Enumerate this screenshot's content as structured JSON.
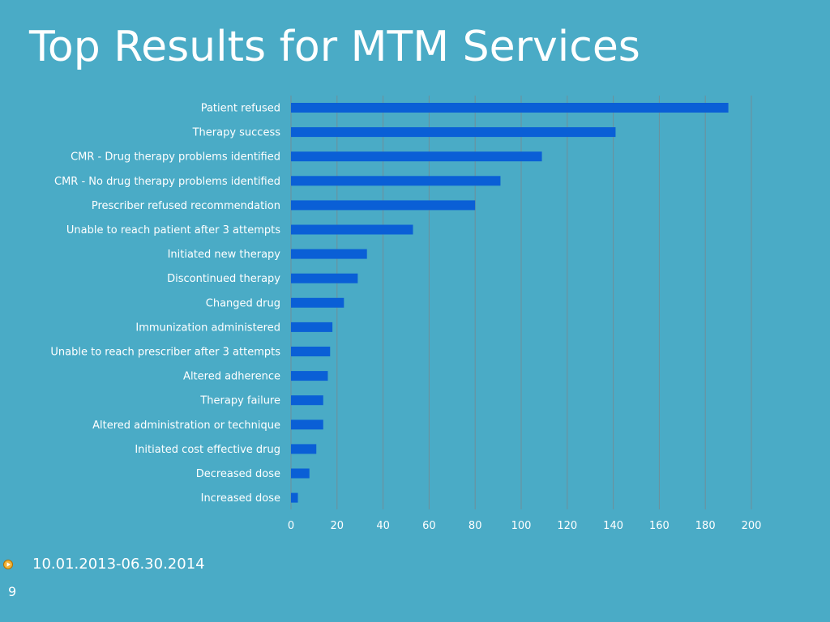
{
  "slide": {
    "title": "Top Results for MTM Services",
    "bullet_text": "10.01.2013-06.30.2014",
    "slide_number": "9"
  },
  "colors": {
    "background": "#4aabc6",
    "bar": "#0a5fd6",
    "gridline": "#6e8f9a",
    "text": "#ffffff",
    "bullet": "#e8a21a"
  },
  "chart_data": {
    "type": "bar",
    "orientation": "horizontal",
    "categories": [
      "Patient refused",
      "Therapy success",
      "CMR - Drug therapy problems identified",
      "CMR - No drug therapy problems identified",
      "Prescriber refused recommendation",
      "Unable to reach patient after 3 attempts",
      "Initiated new therapy",
      "Discontinued therapy",
      "Changed drug",
      "Immunization administered",
      "Unable to reach prescriber after 3 attempts",
      "Altered adherence",
      "Therapy failure",
      "Altered administration or technique",
      "Initiated cost effective drug",
      "Decreased dose",
      "Increased dose"
    ],
    "values": [
      190,
      141,
      109,
      91,
      80,
      53,
      33,
      29,
      23,
      18,
      17,
      16,
      14,
      14,
      11,
      8,
      3
    ],
    "xlim": [
      0,
      200
    ],
    "xticks": [
      0,
      20,
      40,
      60,
      80,
      100,
      120,
      140,
      160,
      180,
      200
    ],
    "grid": true,
    "legend": false
  }
}
